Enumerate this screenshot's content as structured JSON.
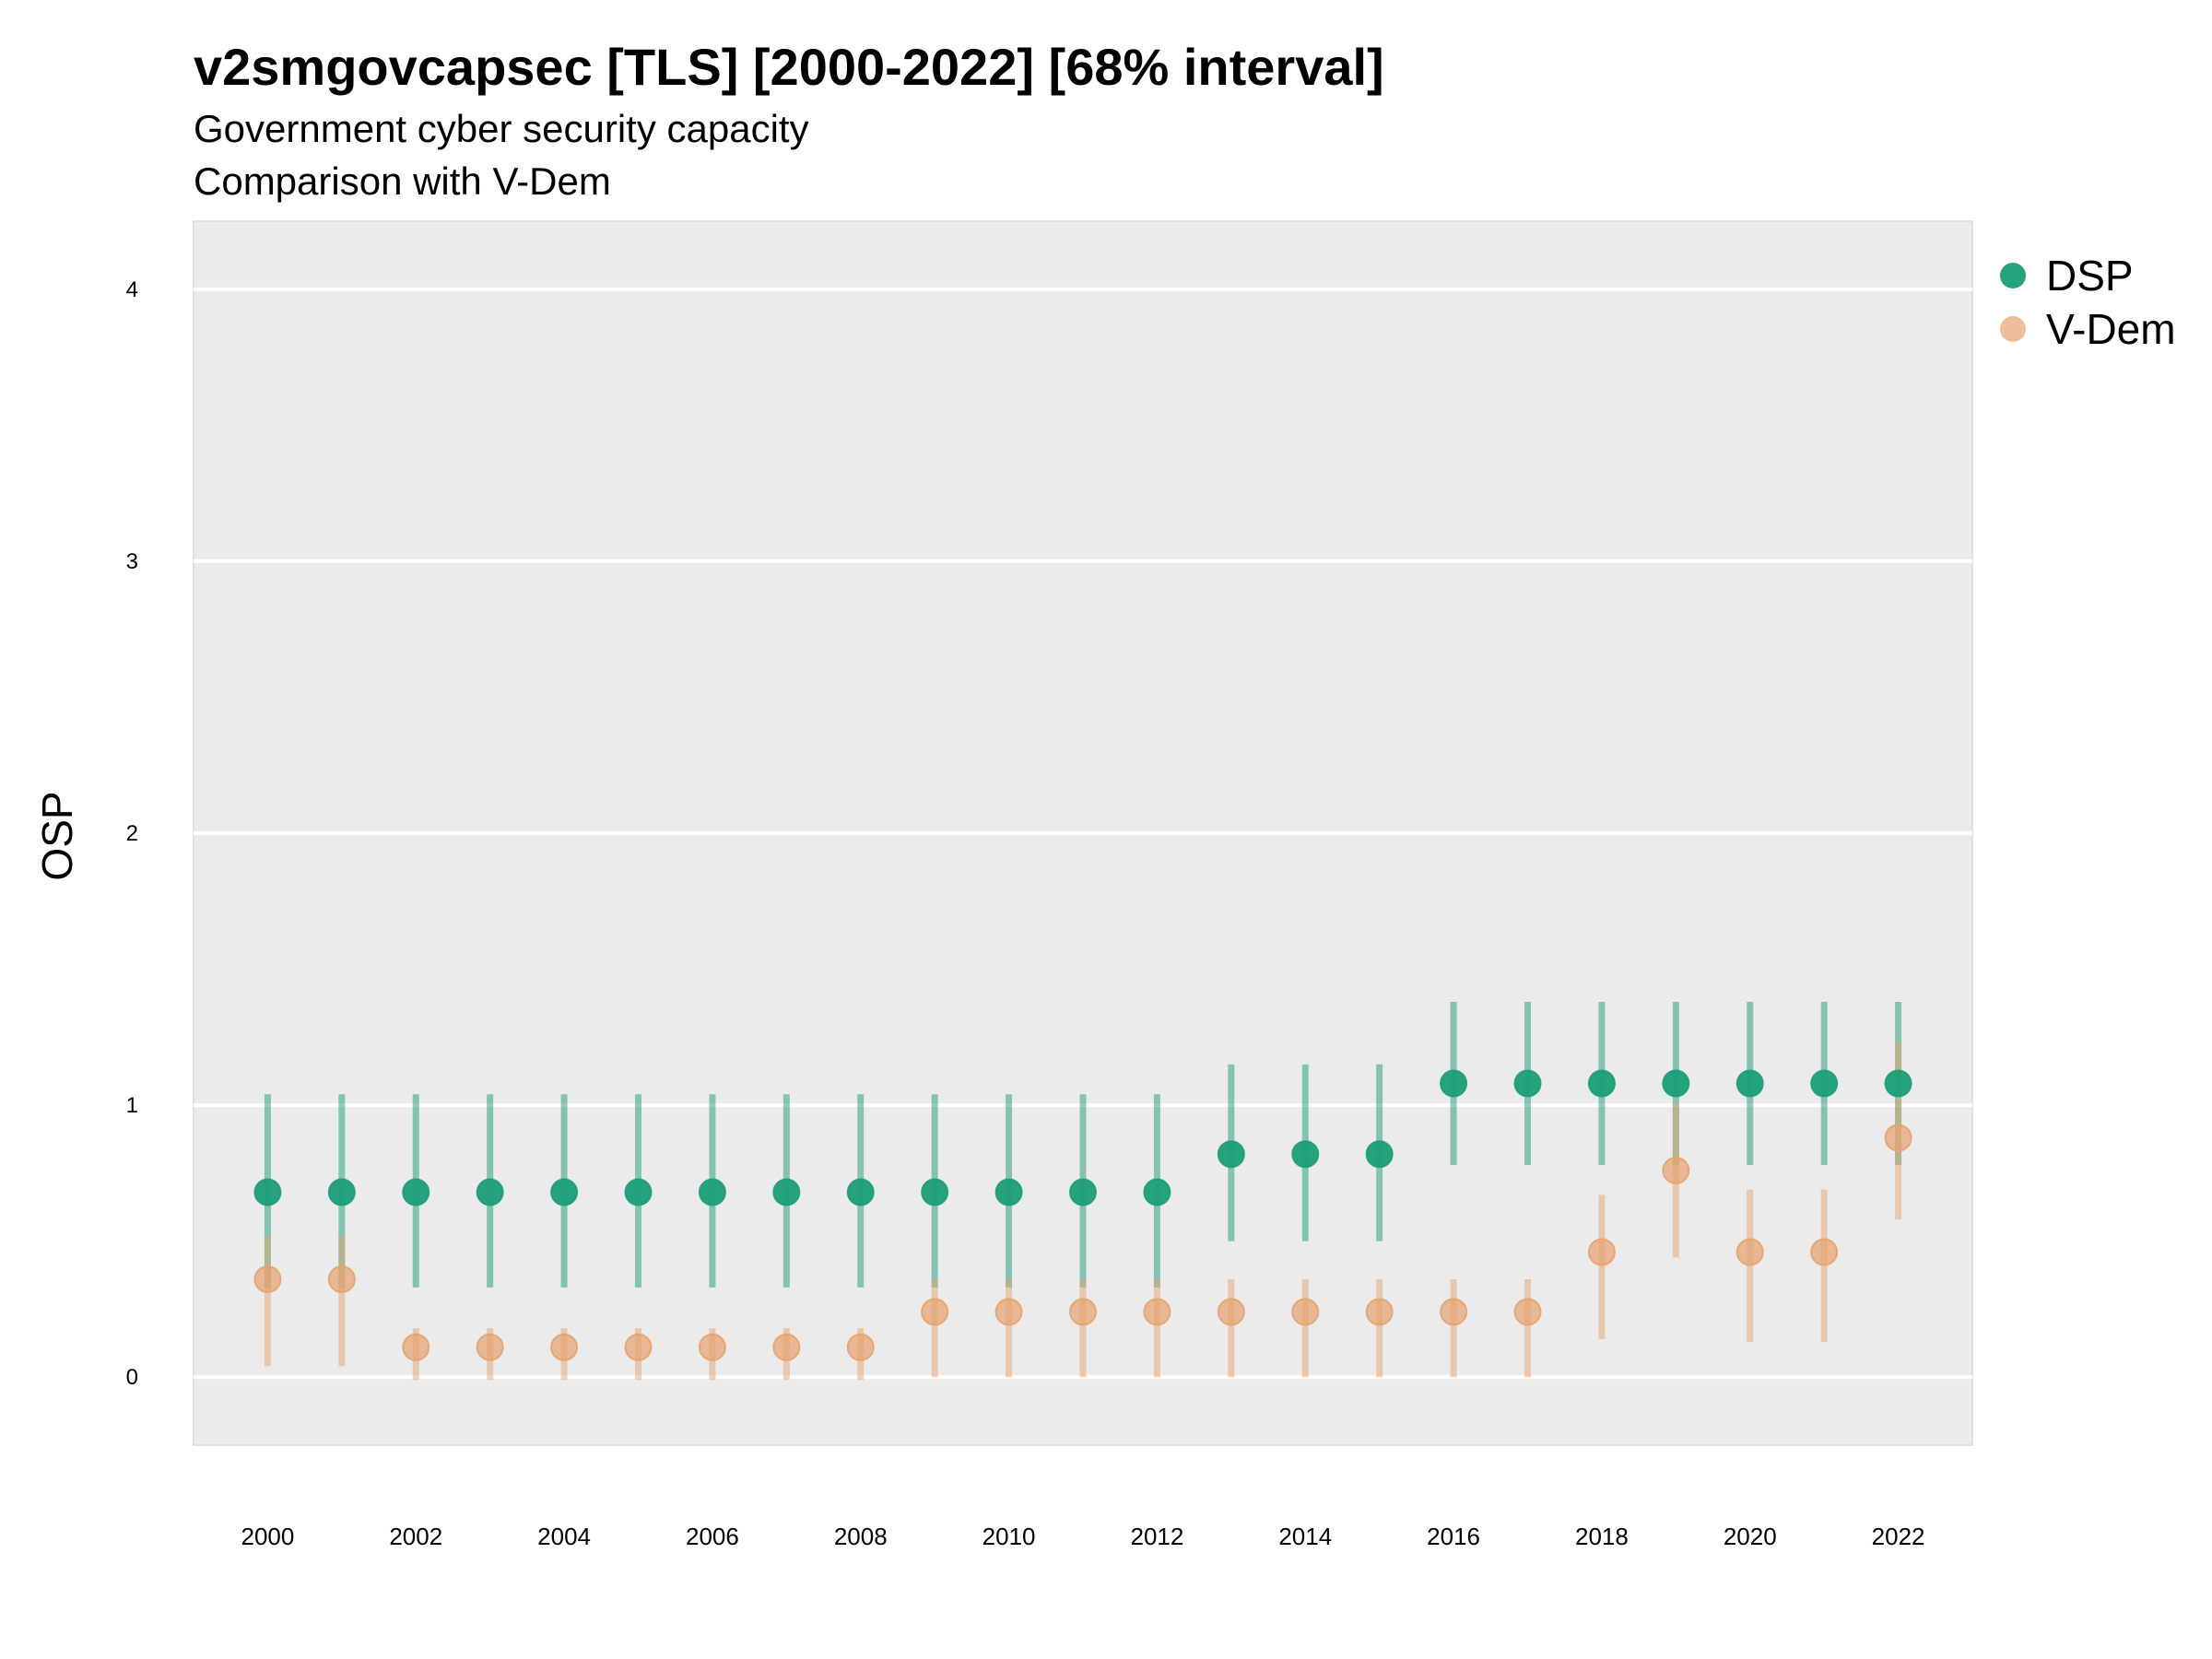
{
  "header": {
    "title": "v2smgovcapsec [TLS] [2000-2022] [68% interval]",
    "subtitle": "Government cyber security capacity",
    "caption": "Comparison with V-Dem"
  },
  "chart_data": {
    "type": "scatter",
    "title": "v2smgovcapsec [TLS] [2000-2022] [68% interval]",
    "subtitle": "Government cyber security capacity",
    "caption": "Comparison with V-Dem",
    "xlabel": "",
    "ylabel": "OSP",
    "xlim": [
      1999,
      2023
    ],
    "ylim": [
      -0.25,
      4.25
    ],
    "x_ticks": [
      2000,
      2002,
      2004,
      2006,
      2008,
      2010,
      2012,
      2014,
      2016,
      2018,
      2020,
      2022
    ],
    "y_ticks": [
      0,
      1,
      2,
      3,
      4
    ],
    "grid": true,
    "legend_position": "right",
    "x": [
      2000,
      2001,
      2002,
      2003,
      2004,
      2005,
      2006,
      2007,
      2008,
      2009,
      2010,
      2011,
      2012,
      2013,
      2014,
      2015,
      2016,
      2017,
      2018,
      2019,
      2020,
      2021,
      2022
    ],
    "series": [
      {
        "name": "DSP",
        "color": "#1b9e77",
        "values": [
          0.68,
          0.68,
          0.68,
          0.68,
          0.68,
          0.68,
          0.68,
          0.68,
          0.68,
          0.68,
          0.68,
          0.68,
          0.68,
          0.82,
          0.82,
          0.82,
          1.08,
          1.08,
          1.08,
          1.08,
          1.08,
          1.08,
          1.08
        ],
        "lower": [
          0.33,
          0.33,
          0.33,
          0.33,
          0.33,
          0.33,
          0.33,
          0.33,
          0.33,
          0.33,
          0.33,
          0.33,
          0.33,
          0.5,
          0.5,
          0.5,
          0.78,
          0.78,
          0.78,
          0.78,
          0.78,
          0.78,
          0.78
        ],
        "upper": [
          1.04,
          1.04,
          1.04,
          1.04,
          1.04,
          1.04,
          1.04,
          1.04,
          1.04,
          1.04,
          1.04,
          1.04,
          1.04,
          1.15,
          1.15,
          1.15,
          1.38,
          1.38,
          1.38,
          1.38,
          1.38,
          1.38,
          1.38
        ]
      },
      {
        "name": "V-Dem",
        "color": "#e6a36e",
        "values": [
          0.36,
          0.36,
          0.11,
          0.11,
          0.11,
          0.11,
          0.11,
          0.11,
          0.11,
          0.24,
          0.24,
          0.24,
          0.24,
          0.24,
          0.24,
          0.24,
          0.24,
          0.24,
          0.46,
          0.76,
          0.46,
          0.46,
          0.88
        ],
        "lower": [
          0.04,
          0.04,
          -0.01,
          -0.01,
          -0.01,
          -0.01,
          -0.01,
          -0.01,
          -0.01,
          0.0,
          0.0,
          0.0,
          0.0,
          0.0,
          0.0,
          0.0,
          0.0,
          0.0,
          0.14,
          0.44,
          0.13,
          0.13,
          0.58
        ],
        "upper": [
          0.52,
          0.52,
          0.18,
          0.18,
          0.18,
          0.18,
          0.18,
          0.18,
          0.18,
          0.36,
          0.36,
          0.36,
          0.36,
          0.36,
          0.36,
          0.36,
          0.36,
          0.36,
          0.67,
          1.01,
          0.69,
          0.69,
          1.23
        ]
      }
    ]
  }
}
